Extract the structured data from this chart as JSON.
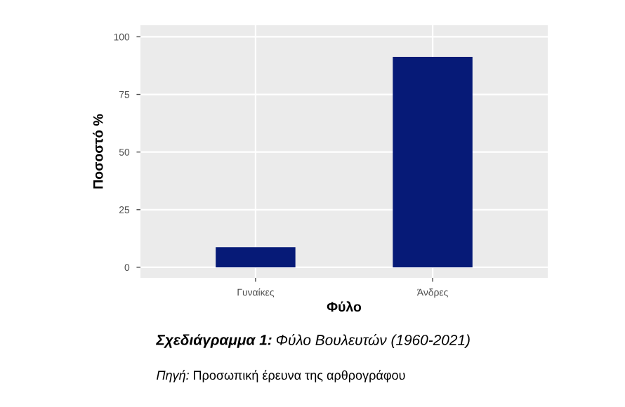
{
  "chart_data": {
    "type": "bar",
    "title": "Σχεδιάγραμμα 1: Φύλο Βουλευτών (1960-2021)",
    "xlabel": "Φύλο",
    "ylabel": "Ποσοστό %",
    "categories": [
      "Γυναίκες",
      "Άνδρες"
    ],
    "values": [
      8.7,
      91.3
    ],
    "color": "#061a77",
    "ylim": [
      -4.6,
      105
    ],
    "yticks": [
      0,
      25,
      50,
      75,
      100
    ],
    "grid": true,
    "annotations": [
      "Πηγή: Προσωπική έρευνα της αρθρογράφου"
    ]
  }
}
